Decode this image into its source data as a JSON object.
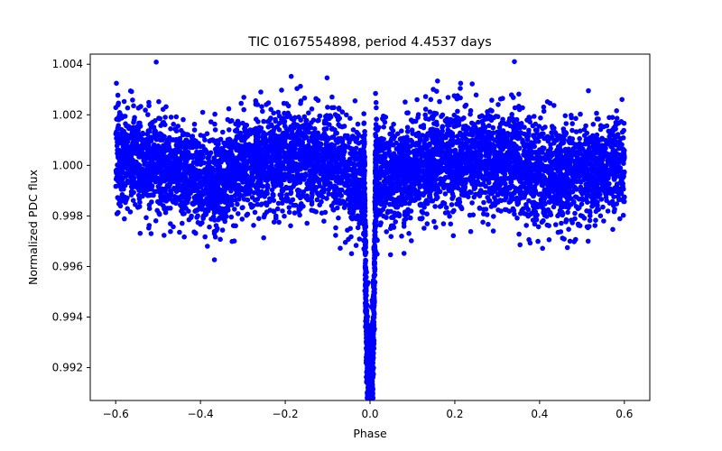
{
  "chart_data": {
    "type": "scatter",
    "title": "TIC 0167554898, period 4.4537 days",
    "xlabel": "Phase",
    "ylabel": "Normalized PDC flux",
    "xlim": [
      -0.66,
      0.66
    ],
    "ylim": [
      0.9907,
      1.0044
    ],
    "x_ticks": [
      -0.6,
      -0.4,
      -0.2,
      0.0,
      0.2,
      0.4,
      0.6
    ],
    "x_tick_labels": [
      "−0.6",
      "−0.4",
      "−0.2",
      "0.0",
      "0.2",
      "0.4",
      "0.6"
    ],
    "y_ticks": [
      0.992,
      0.994,
      0.996,
      0.998,
      1.0,
      1.002,
      1.004
    ],
    "y_tick_labels": [
      "0.992",
      "0.994",
      "0.996",
      "0.998",
      "1.000",
      "1.002",
      "1.004"
    ],
    "grid": false,
    "marker_color": "#0000ff",
    "phase_range": [
      -0.6,
      0.6
    ],
    "baseline_flux": 1.0,
    "baseline_scatter": 0.0009,
    "transit": {
      "center_phase": 0.0,
      "depth": 0.0088,
      "full_width_phase": 0.025
    },
    "series": [
      {
        "name": "",
        "color": "#0000ff",
        "note_points": [
          {
            "x": -0.58,
            "y": 1.0
          },
          {
            "x": -0.4,
            "y": 0.9995
          },
          {
            "x": -0.2,
            "y": 1.0003
          },
          {
            "x": -0.05,
            "y": 0.9996
          },
          {
            "x": -0.01,
            "y": 0.9995
          },
          {
            "x": 0.0,
            "y": 0.9915
          },
          {
            "x": 0.01,
            "y": 0.9993
          },
          {
            "x": 0.05,
            "y": 1.0
          },
          {
            "x": 0.2,
            "y": 1.0003
          },
          {
            "x": 0.4,
            "y": 1.0
          },
          {
            "x": 0.58,
            "y": 1.0
          }
        ]
      }
    ]
  }
}
